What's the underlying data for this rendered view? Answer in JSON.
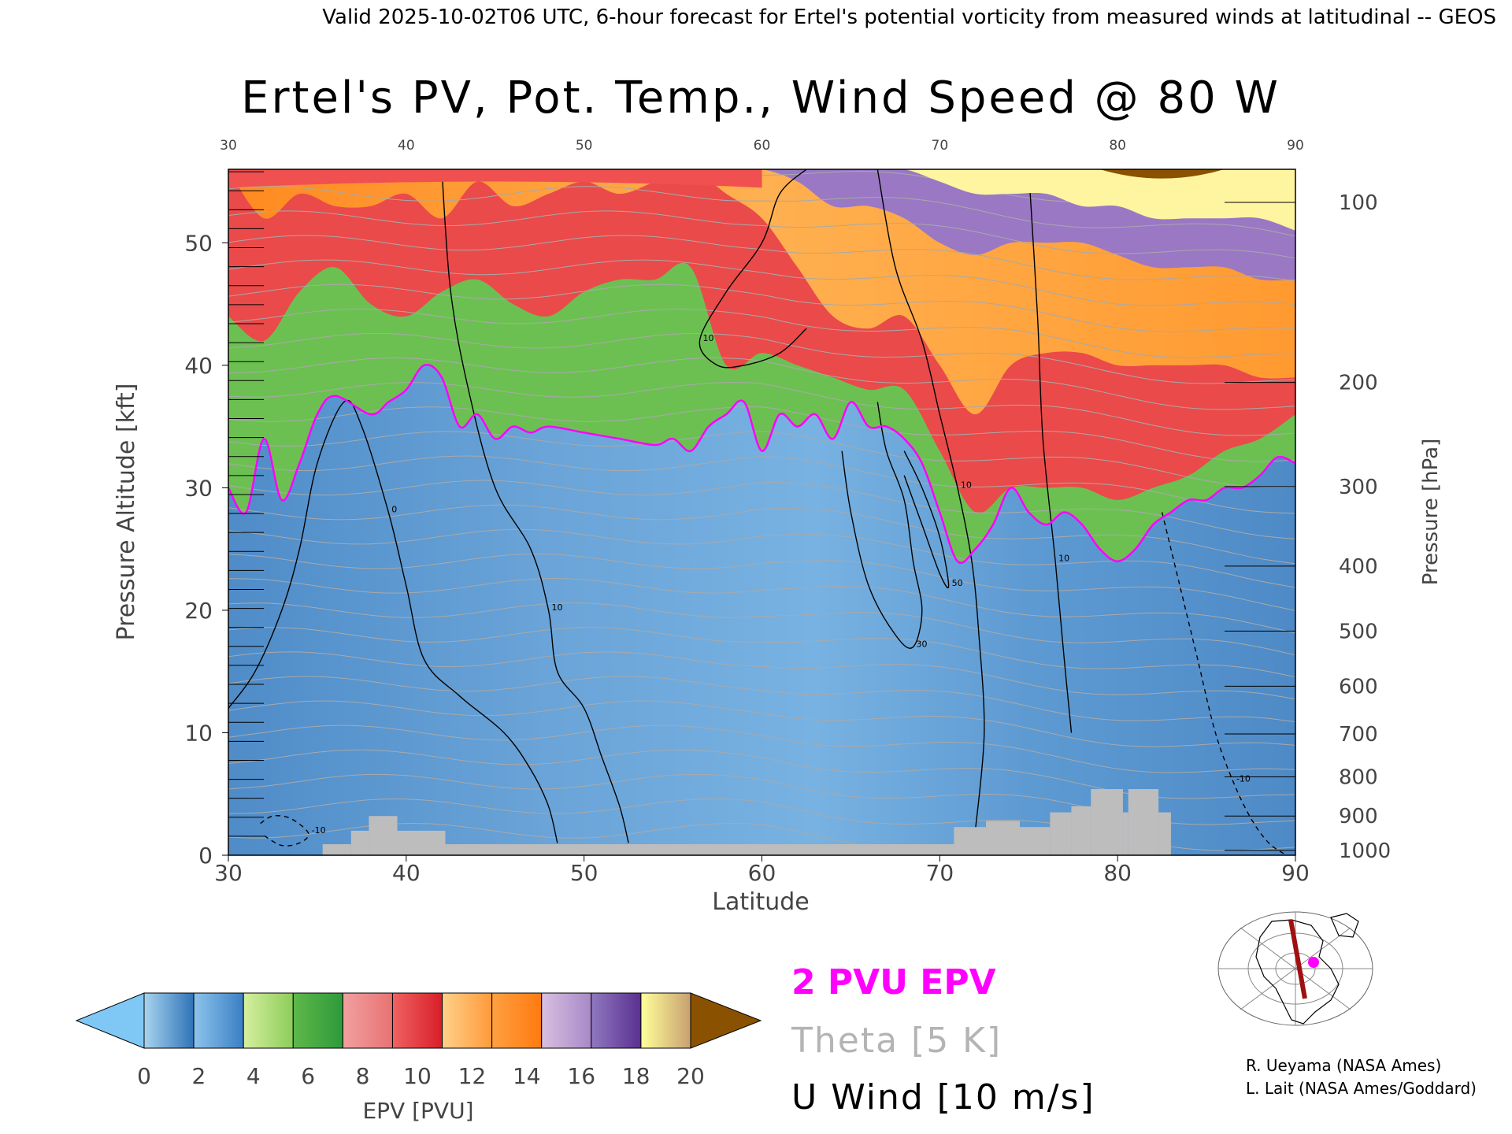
{
  "header": {
    "valid_line": "Valid 2025-10-02T06 UTC, 6-hour forecast for Ertel's potential vorticity from measured winds at latitudinal -- GEOS"
  },
  "chart_data": {
    "type": "heatmap",
    "title": "Ertel's PV, Pot. Temp., Wind Speed @ 80 W",
    "xlabel": "Latitude",
    "ylabel": "Pressure Altitude [kft]",
    "y2label": "Pressure [hPa]",
    "xlim": [
      30,
      90
    ],
    "ylim": [
      0,
      56
    ],
    "x_ticks": [
      "30",
      "40",
      "50",
      "60",
      "70",
      "80",
      "90"
    ],
    "y_ticks": [
      "0",
      "10",
      "20",
      "30",
      "40",
      "50"
    ],
    "pressure_ticks": [
      {
        "label": "100",
        "kft": 53.3
      },
      {
        "label": "200",
        "kft": 38.6
      },
      {
        "label": "300",
        "kft": 30.1
      },
      {
        "label": "400",
        "kft": 23.6
      },
      {
        "label": "500",
        "kft": 18.3
      },
      {
        "label": "600",
        "kft": 13.8
      },
      {
        "label": "700",
        "kft": 9.9
      },
      {
        "label": "800",
        "kft": 6.4
      },
      {
        "label": "900",
        "kft": 3.2
      },
      {
        "label": "1000",
        "kft": 0.4
      }
    ],
    "tropopause_2pvu": {
      "lat": [
        30,
        31,
        32,
        33,
        34,
        35,
        36,
        38,
        39,
        40,
        41,
        42,
        43,
        44,
        45,
        46,
        47,
        48,
        50,
        52,
        54,
        55,
        56,
        57,
        58,
        59,
        60,
        61,
        62,
        63,
        64,
        65,
        66,
        67,
        68,
        69,
        70,
        71,
        72,
        73,
        74,
        75,
        76,
        77,
        78,
        79,
        80,
        81,
        82,
        83,
        84,
        85,
        86,
        87,
        88,
        89,
        90
      ],
      "kft": [
        30,
        28,
        34,
        29,
        32,
        36,
        37.5,
        36,
        37,
        38,
        40,
        39,
        35,
        36,
        34,
        35,
        34.5,
        35,
        34.5,
        34,
        33.5,
        34,
        33,
        35,
        36,
        37,
        33,
        36,
        35,
        36,
        34,
        37,
        35,
        35,
        34,
        32,
        28,
        24,
        25,
        27,
        30,
        28,
        27,
        28,
        27,
        25,
        24,
        25,
        27,
        28,
        29,
        29,
        30,
        30,
        31,
        32.5,
        32
      ]
    },
    "layer_tops_kft": {
      "lat": [
        30,
        32,
        34,
        36,
        38,
        40,
        42,
        44,
        46,
        48,
        50,
        52,
        54,
        56,
        58,
        60,
        62,
        64,
        66,
        68,
        70,
        72,
        74,
        76,
        78,
        80,
        82,
        84,
        86,
        88,
        90
      ],
      "green": [
        44,
        42,
        46,
        48,
        45,
        44,
        46,
        47,
        45,
        44,
        46,
        47,
        47,
        48,
        40,
        41,
        40,
        39,
        38,
        38,
        33,
        28,
        30,
        30,
        30,
        29,
        30,
        31,
        33,
        34,
        36
      ],
      "red": [
        56,
        52,
        54,
        53,
        53,
        54,
        52,
        55,
        53,
        54,
        55,
        54,
        55,
        56,
        54,
        52,
        48,
        44,
        43,
        44,
        40,
        36,
        40,
        41,
        41,
        40,
        40,
        40,
        40,
        39,
        39
      ],
      "orange": [
        56,
        56,
        56,
        56,
        56,
        56,
        56,
        56,
        56,
        56,
        56,
        56,
        56,
        56,
        56,
        56,
        55,
        53,
        53,
        52,
        50,
        49,
        50,
        50,
        50,
        49,
        48,
        48,
        48,
        47,
        47
      ],
      "purple": [
        56,
        56,
        56,
        56,
        56,
        56,
        56,
        56,
        56,
        56,
        56,
        56,
        56,
        56,
        56,
        56,
        56,
        56,
        56,
        56,
        55,
        54,
        54,
        54,
        53,
        53,
        52,
        52,
        52,
        52,
        51
      ]
    },
    "terrain_steps": [
      {
        "lat0": 35.3,
        "lat1": 36.9,
        "kft": 0.9
      },
      {
        "lat0": 36.9,
        "lat1": 37.9,
        "kft": 2.0
      },
      {
        "lat0": 37.9,
        "lat1": 39.5,
        "kft": 3.2
      },
      {
        "lat0": 39.5,
        "lat1": 42.2,
        "kft": 2.0
      },
      {
        "lat0": 42.2,
        "lat1": 60.0,
        "kft": 0.9
      },
      {
        "lat0": 60.0,
        "lat1": 70.8,
        "kft": 0.9
      },
      {
        "lat0": 70.8,
        "lat1": 72.6,
        "kft": 2.3
      },
      {
        "lat0": 72.6,
        "lat1": 74.5,
        "kft": 2.8
      },
      {
        "lat0": 74.5,
        "lat1": 76.2,
        "kft": 2.3
      },
      {
        "lat0": 76.2,
        "lat1": 77.4,
        "kft": 3.5
      },
      {
        "lat0": 77.4,
        "lat1": 78.5,
        "kft": 4.0
      },
      {
        "lat0": 78.5,
        "lat1": 80.3,
        "kft": 5.4
      },
      {
        "lat0": 80.3,
        "lat1": 80.6,
        "kft": 3.5
      },
      {
        "lat0": 80.6,
        "lat1": 82.3,
        "kft": 5.4
      },
      {
        "lat0": 82.3,
        "lat1": 83.0,
        "kft": 3.5
      }
    ],
    "wind_contours": [
      {
        "label": "10",
        "lat": [
          62.5,
          61.0,
          60.0,
          58.0,
          56.5,
          57.5,
          59.0,
          61.0,
          62.5
        ],
        "kft": [
          56,
          54,
          50,
          46,
          42,
          40,
          40,
          41,
          43
        ]
      },
      {
        "label": "10",
        "lat": [
          66.5,
          67.5,
          69.0,
          70.0,
          71.0,
          71.8,
          72.2,
          72.5,
          72.0
        ],
        "kft": [
          56,
          48,
          42,
          36,
          30,
          24,
          18,
          10,
          2
        ]
      },
      {
        "label": "10",
        "lat": [
          75.0,
          75.5,
          75.8,
          76.5,
          77.0,
          77.4
        ],
        "kft": [
          56,
          44,
          34,
          24,
          16,
          10
        ]
      },
      {
        "label": "0",
        "lat": [
          30.0,
          31.5,
          33.0,
          34.0,
          35.0,
          36.5,
          37.5,
          39.0,
          40.0,
          41.0,
          43.0,
          45.5,
          47.0,
          48.0,
          48.5
        ],
        "kft": [
          12,
          15,
          20,
          25,
          32,
          37,
          35,
          28,
          22,
          16,
          13,
          10,
          7,
          4,
          1
        ]
      },
      {
        "label": "10",
        "lat": [
          42.0,
          42.5,
          43.5,
          45.0,
          47.0,
          48.0,
          48.5,
          50.0,
          51.0,
          52.0,
          52.5
        ],
        "kft": [
          56,
          46,
          38,
          30,
          25,
          20,
          15,
          12,
          8,
          4,
          1
        ]
      },
      {
        "label": "30",
        "lat": [
          66.5,
          67.0,
          68.0,
          68.5,
          69.0,
          68.5,
          67.5,
          66.0,
          65.0,
          64.5
        ],
        "kft": [
          37,
          33,
          29,
          24,
          20,
          17,
          18,
          22,
          28,
          33
        ]
      },
      {
        "label": "50",
        "lat": [
          68.0,
          69.0,
          70.0,
          70.5,
          70.0,
          69.0,
          68.0
        ],
        "kft": [
          33,
          30,
          26,
          22,
          23,
          27,
          31
        ]
      },
      {
        "label": "-10",
        "lat": [
          31.8,
          32.5,
          33.5,
          34.5,
          34.0,
          33.0,
          32.0
        ],
        "kft": [
          2.6,
          3.2,
          3.0,
          1.8,
          1.0,
          0.8,
          1.6
        ]
      },
      {
        "label": "-10",
        "lat": [
          82.5,
          83.5,
          84.5,
          85.5,
          86.5,
          87.5,
          88.5,
          89.5
        ],
        "kft": [
          28,
          22,
          16,
          10,
          6,
          3,
          1,
          0
        ]
      }
    ],
    "legend": [
      {
        "label": "2 PVU EPV",
        "color": "#ff00ff"
      },
      {
        "label": "Theta [5 K]",
        "color": "#b4b4b4"
      },
      {
        "label": "U Wind [10 m/s]",
        "color": "#000000"
      }
    ],
    "colorbar": {
      "label": "EPV [PVU]",
      "ticks": [
        "0",
        "2",
        "4",
        "6",
        "8",
        "10",
        "12",
        "14",
        "16",
        "18",
        "20"
      ],
      "below_color": "#7fc8f5",
      "above_color": "#8a5200",
      "segments": [
        [
          "#a8d4ee",
          "#2f73b8"
        ],
        [
          "#8cc4ec",
          "#3a7fc4"
        ],
        [
          "#d6ef9e",
          "#8ccd5b"
        ],
        [
          "#5fb84a",
          "#2e9a3a"
        ],
        [
          "#f2a0a0",
          "#e87272"
        ],
        [
          "#f06262",
          "#d81e28"
        ],
        [
          "#ffd08a",
          "#ff9a3a"
        ],
        [
          "#ffa040",
          "#ff7a10"
        ],
        [
          "#d8c0e0",
          "#a888c8"
        ],
        [
          "#9078c0",
          "#5a3090"
        ],
        [
          "#ffff99",
          "#c8a070"
        ]
      ]
    },
    "credits": [
      "R. Ueyama (NASA Ames)",
      "L. Lait (NASA Ames/Goddard)"
    ]
  },
  "colors": {
    "tropo_blue": "#5b98d0",
    "tropo_blue_light": "#7ab0e0",
    "green_layer": "#6cc052",
    "red_layer": "#ea4a4a",
    "orange_layer": "#ffa035",
    "purple_layer": "#9a78c4",
    "yellow_layer": "#fff5a0",
    "brown_layer": "#8a5200",
    "pv_line": "#ff00ff",
    "terrain": "#bdbdbd",
    "map_path": "#a01010"
  }
}
